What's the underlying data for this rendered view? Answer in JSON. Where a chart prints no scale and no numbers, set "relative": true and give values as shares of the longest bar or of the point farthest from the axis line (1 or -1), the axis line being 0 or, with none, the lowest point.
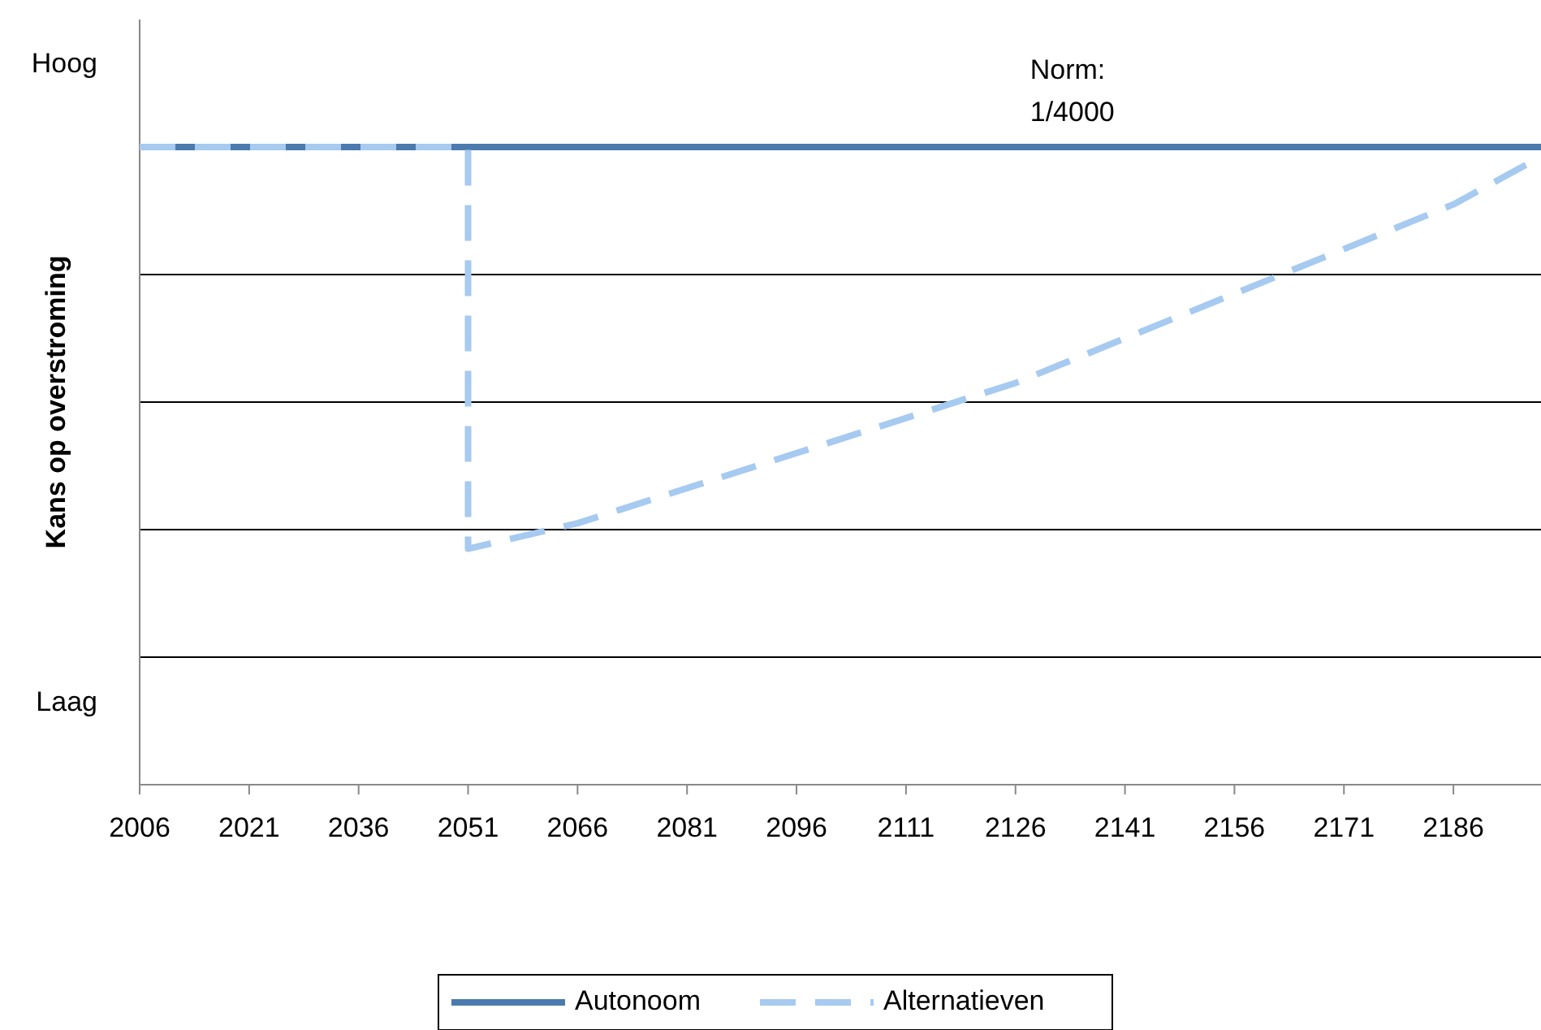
{
  "chart_data": {
    "type": "line",
    "ylabel": "Kans op overstroming",
    "relative": true,
    "x": [
      2006,
      2051,
      2051,
      2066,
      2096,
      2126,
      2156,
      2171,
      2186,
      2198
    ],
    "xlim": [
      2006,
      2198
    ],
    "xticks": [
      2006,
      2021,
      2036,
      2051,
      2066,
      2081,
      2096,
      2111,
      2126,
      2141,
      2156,
      2171,
      2186
    ],
    "grid": "y",
    "legend": "bottom",
    "series": [
      {
        "name": "Autonoom",
        "color": "#4a7aae",
        "line_style": "solid",
        "x": [
          2006,
          2198
        ],
        "values": [
          1,
          1
        ]
      },
      {
        "name": "Alternatieven",
        "color": "#a6caf0",
        "line_style": "dashed",
        "values": [
          1,
          1,
          0.37,
          0.41,
          0.52,
          0.63,
          0.77,
          0.84,
          0.91,
          0.985
        ]
      }
    ],
    "annotations": [
      "Hoog",
      "Laag",
      {
        "text": "Norm: 1/4000",
        "x": 2128,
        "y": 1
      }
    ]
  }
}
